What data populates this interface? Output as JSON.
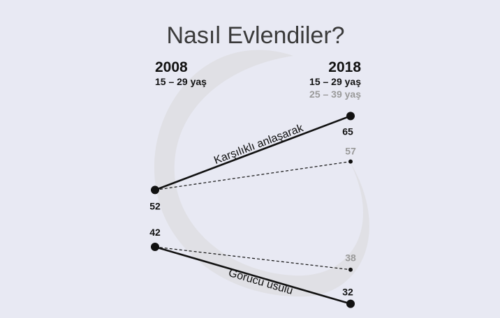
{
  "chart_data": {
    "type": "line",
    "title": "Nasıl Evlendiler?",
    "x": [
      "2008",
      "2018"
    ],
    "x_sublabels": {
      "left": [
        "15 – 29 yaş"
      ],
      "right": [
        "15 – 29 yaş",
        "25 – 39 yaş"
      ]
    },
    "series": [
      {
        "name": "Karşılıklı anlaşarak",
        "group": "15 – 29 yaş",
        "style": "solid",
        "values": [
          52,
          65
        ]
      },
      {
        "name": "",
        "group": "25 – 39 yaş",
        "style": "dashed",
        "values": [
          52,
          57
        ]
      },
      {
        "name": "Görücü usulü",
        "group": "15 – 29 yaş",
        "style": "solid",
        "values": [
          42,
          32
        ]
      },
      {
        "name": "",
        "group": "25 – 39 yaş",
        "style": "dashed",
        "values": [
          42,
          38
        ]
      }
    ],
    "ylim": [
      30,
      67
    ],
    "grid": false,
    "legend": "none"
  },
  "colors": {
    "background": "#e8e9f3",
    "primary": "#111111",
    "secondary_label": "#9a9a9a",
    "title": "#3a3a3a",
    "decorative_ring": "#d6d6d6"
  }
}
